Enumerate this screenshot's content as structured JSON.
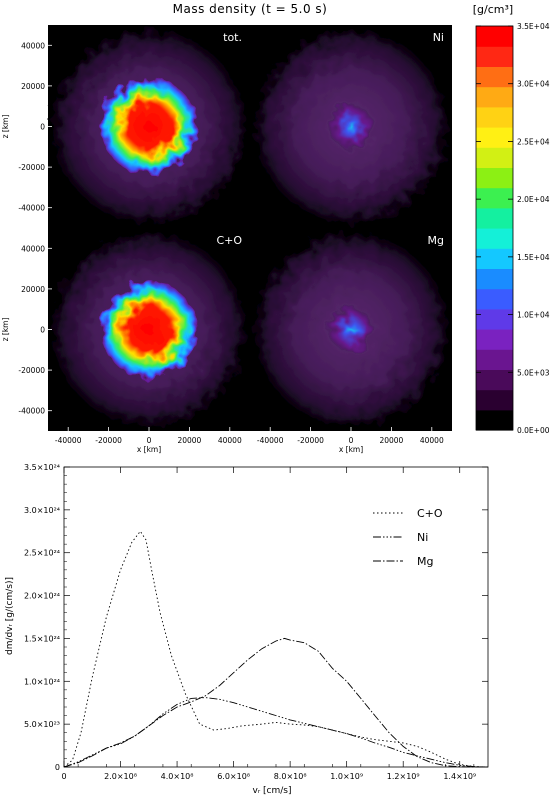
{
  "figure_title": "Mass density (t = 5.0 s)",
  "panels": [
    {
      "label": "tot.",
      "species": "total",
      "core_level": 1.0
    },
    {
      "label": "Ni",
      "species": "Ni",
      "core_level": 0.33
    },
    {
      "label": "C+O",
      "species": "C+O",
      "core_level": 0.95
    },
    {
      "label": "Mg",
      "species": "Mg",
      "core_level": 0.33
    }
  ],
  "axes": {
    "x_label": "x [km]",
    "z_label": "z [km]",
    "x_ticks": [
      -40000,
      -20000,
      0,
      20000,
      40000
    ],
    "z_ticks": [
      40000,
      20000,
      0,
      -20000,
      -40000
    ],
    "x_tick_labels": [
      "-40000",
      "-20000",
      "0",
      "20000",
      "40000"
    ],
    "z_tick_labels": [
      "40000",
      "20000",
      "0",
      "-20000",
      "-40000"
    ]
  },
  "colorbar": {
    "unit": "[g/cm³]",
    "min": 0,
    "max": 35000,
    "tick_values": [
      0,
      5000,
      10000,
      15000,
      20000,
      25000,
      30000,
      35000
    ],
    "tick_labels": [
      "0.0E+00",
      "5.0E+03",
      "1.0E+04",
      "1.5E+04",
      "2.0E+04",
      "2.5E+04",
      "3.0E+04",
      "3.5E+04"
    ],
    "colors": [
      "#000000",
      "#2a0030",
      "#4a0a5a",
      "#6a1590",
      "#7a22c0",
      "#5f3ae8",
      "#3a5cff",
      "#1a8cff",
      "#14c8ff",
      "#14f0d8",
      "#14f0a0",
      "#3cf050",
      "#8cf014",
      "#d2f014",
      "#fff014",
      "#ffd214",
      "#ffaa14",
      "#ff6e14",
      "#ff2814",
      "#ff0000"
    ]
  },
  "chart_data": {
    "type": "line",
    "title": "",
    "xlabel": "vᵣ [cm/s]",
    "ylabel": "dm/dvᵣ [g/(cm/s)]",
    "xlim": [
      0,
      1500000000.0
    ],
    "ylim": [
      0,
      3.5e+24
    ],
    "x_tick_labels": [
      "0",
      "2.0×10⁸",
      "4.0×10⁸",
      "6.0×10⁸",
      "8.0×10⁸",
      "1.0×10⁹",
      "1.2×10⁹",
      "1.4×10⁹"
    ],
    "x_tick_values": [
      0,
      200000000.0,
      400000000.0,
      600000000.0,
      800000000.0,
      1000000000.0,
      1200000000.0,
      1400000000.0
    ],
    "y_tick_labels": [
      "0",
      "5.0×10²³",
      "1.0×10²⁴",
      "1.5×10²⁴",
      "2.0×10²⁴",
      "2.5×10²⁴",
      "3.0×10²⁴",
      "3.5×10²⁴"
    ],
    "y_tick_values": [
      0,
      5e+23,
      1e+24,
      1.5e+24,
      2e+24,
      2.5e+24,
      3e+24,
      3.5e+24
    ],
    "legend_position": "top-right",
    "series": [
      {
        "name": "C+O",
        "dash": "1.5,2.5",
        "x": [
          0,
          30000000.0,
          60000000.0,
          100000000.0,
          150000000.0,
          200000000.0,
          240000000.0,
          270000000.0,
          290000000.0,
          310000000.0,
          340000000.0,
          380000000.0,
          430000000.0,
          480000000.0,
          530000000.0,
          580000000.0,
          630000000.0,
          700000000.0,
          750000000.0,
          800000000.0,
          850000000.0,
          900000000.0,
          950000000.0,
          1000000000.0,
          1050000000.0,
          1100000000.0,
          1150000000.0,
          1200000000.0,
          1250000000.0,
          1300000000.0,
          1350000000.0,
          1400000000.0,
          1450000000.0,
          1500000000.0
        ],
        "y": [
          0,
          8e+22,
          4e+23,
          1.05e+24,
          1.75e+24,
          2.3e+24,
          2.62e+24,
          2.75e+24,
          2.65e+24,
          2.3e+24,
          1.8e+24,
          1.3e+24,
          8.5e+23,
          5e+23,
          4.3e+23,
          4.5e+23,
          4.8e+23,
          5e+23,
          5.2e+23,
          5e+23,
          4.9e+23,
          4.7e+23,
          4.3e+23,
          3.9e+23,
          3.5e+23,
          3.2e+23,
          3e+23,
          2.8e+23,
          2.4e+23,
          1.7e+23,
          9e+22,
          3e+22,
          5e+21,
          0
        ]
      },
      {
        "name": "Ni",
        "dash": "8,2,1.5,2,1.5,2,1.5,2",
        "x": [
          0,
          50000000.0,
          100000000.0,
          150000000.0,
          200000000.0,
          250000000.0,
          300000000.0,
          350000000.0,
          400000000.0,
          450000000.0,
          500000000.0,
          550000000.0,
          600000000.0,
          700000000.0,
          800000000.0,
          900000000.0,
          1000000000.0,
          1050000000.0,
          1100000000.0,
          1150000000.0,
          1200000000.0,
          1250000000.0,
          1300000000.0,
          1350000000.0,
          1400000000.0,
          1450000000.0,
          1500000000.0
        ],
        "y": [
          0,
          6e+22,
          1.4e+23,
          2.2e+23,
          2.7e+23,
          3.6e+23,
          4.8e+23,
          6.2e+23,
          7.3e+23,
          8e+23,
          8.1e+23,
          7.9e+23,
          7.5e+23,
          6.5e+23,
          5.5e+23,
          4.7e+23,
          3.9e+23,
          3.4e+23,
          2.8e+23,
          2.3e+23,
          1.7e+23,
          1.3e+23,
          9e+22,
          5e+22,
          2e+22,
          5e+21,
          0
        ]
      },
      {
        "name": "Mg",
        "dash": "8,2,1.5,2",
        "x": [
          0,
          50000000.0,
          100000000.0,
          150000000.0,
          200000000.0,
          250000000.0,
          300000000.0,
          350000000.0,
          400000000.0,
          450000000.0,
          500000000.0,
          550000000.0,
          600000000.0,
          650000000.0,
          700000000.0,
          750000000.0,
          780000000.0,
          800000000.0,
          850000000.0,
          900000000.0,
          950000000.0,
          1000000000.0,
          1050000000.0,
          1100000000.0,
          1150000000.0,
          1200000000.0,
          1250000000.0,
          1300000000.0,
          1350000000.0,
          1400000000.0,
          1450000000.0,
          1500000000.0
        ],
        "y": [
          0,
          5e+22,
          1.3e+23,
          2.2e+23,
          2.8e+23,
          3.6e+23,
          4.8e+23,
          6e+23,
          7e+23,
          7.6e+23,
          8.3e+23,
          9.5e+23,
          1.1e+24,
          1.25e+24,
          1.38e+24,
          1.47e+24,
          1.5e+24,
          1.48e+24,
          1.45e+24,
          1.35e+24,
          1.15e+24,
          1e+24,
          8e+23,
          6e+23,
          4e+23,
          2.4e+23,
          1.2e+23,
          5e+22,
          1.5e+22,
          3e+21,
          0,
          0
        ]
      }
    ]
  }
}
